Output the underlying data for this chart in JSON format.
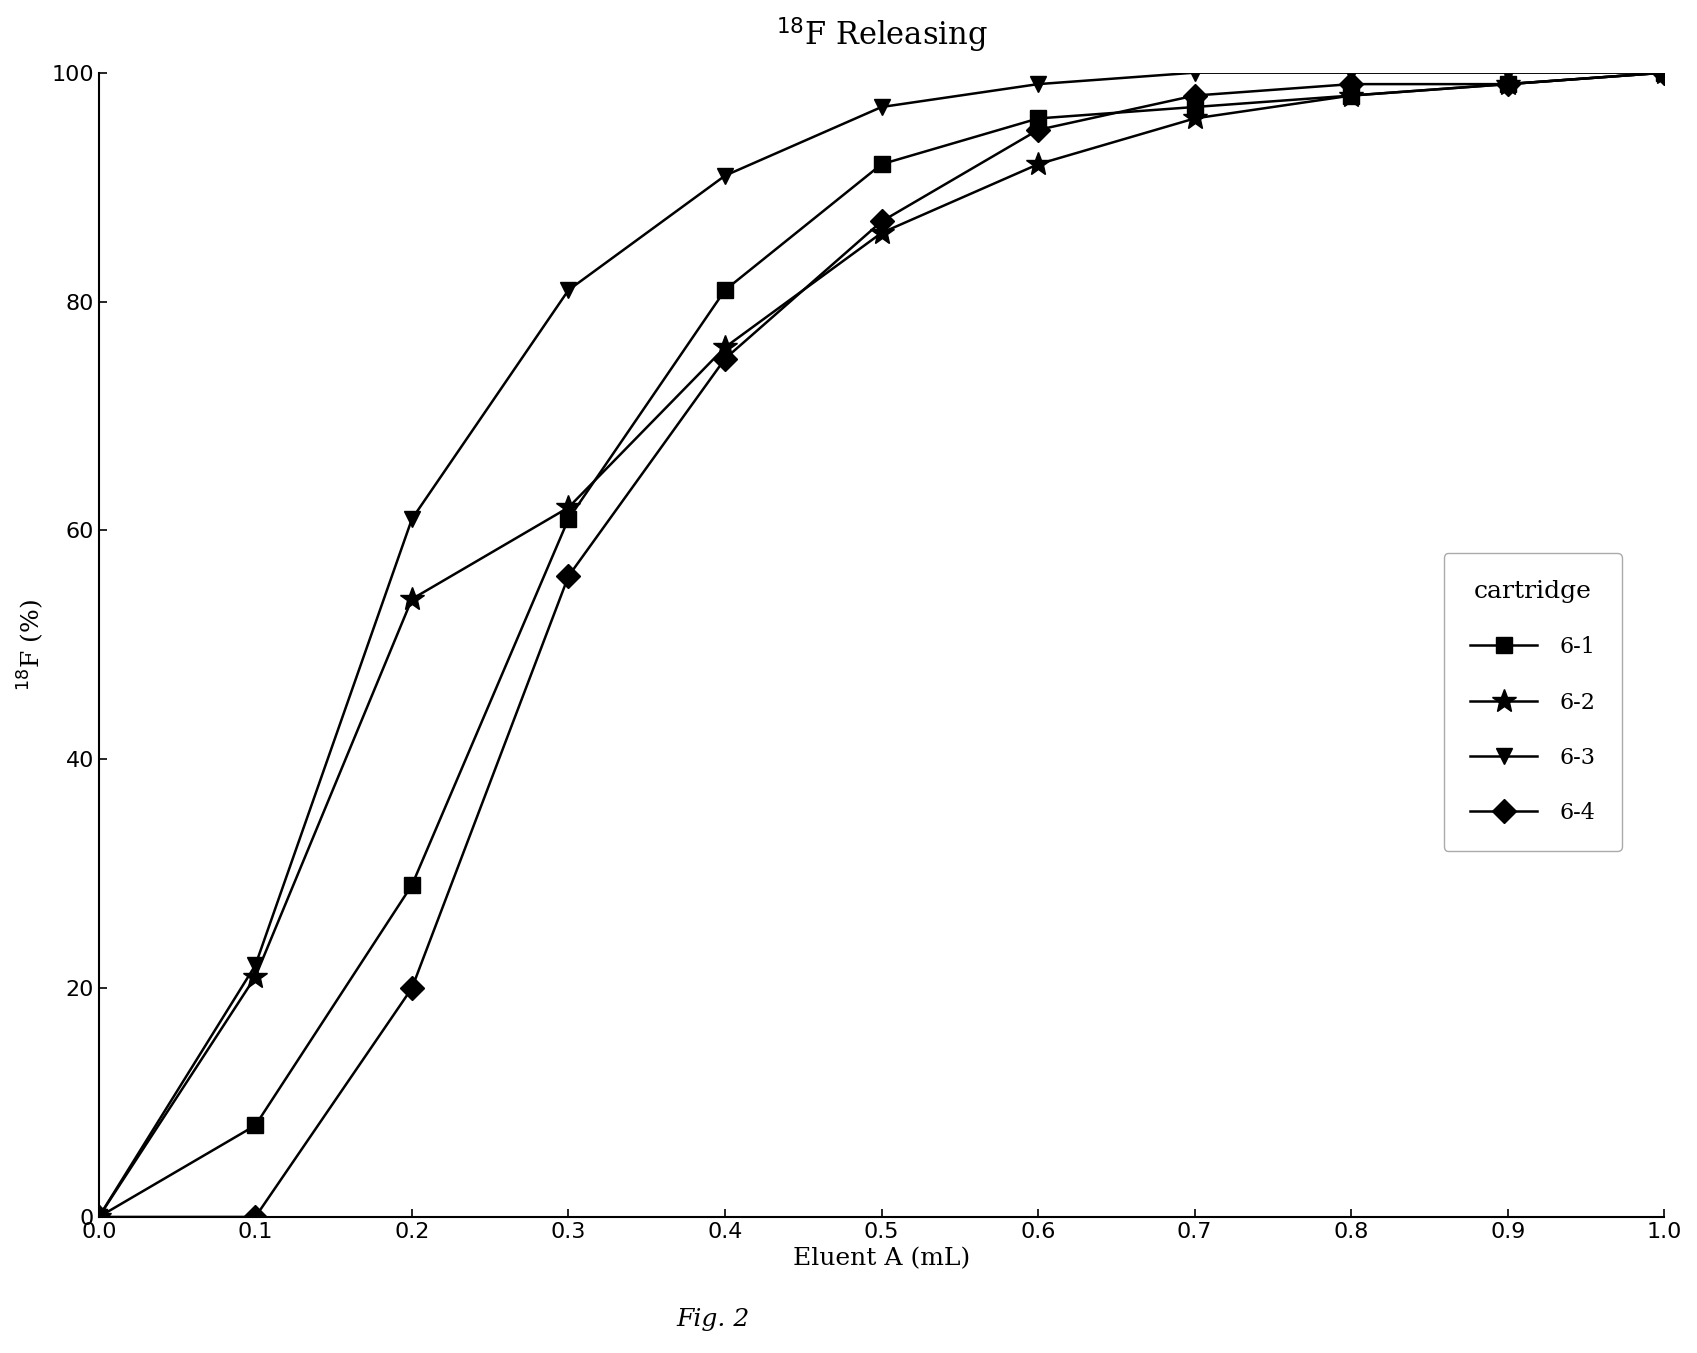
{
  "title": "$^{18}$F Releasing",
  "xlabel": "Eluent A (mL)",
  "ylabel": "$^{18}$F (%)",
  "caption": "Fig. 2",
  "xlim": [
    0.0,
    1.0
  ],
  "ylim": [
    0,
    100
  ],
  "xticks": [
    0.0,
    0.1,
    0.2,
    0.3,
    0.4,
    0.5,
    0.6,
    0.7,
    0.8,
    0.9,
    1.0
  ],
  "yticks": [
    0,
    20,
    40,
    60,
    80,
    100
  ],
  "legend_title": "cartridge",
  "series": [
    {
      "label": "6-1",
      "x": [
        0.0,
        0.1,
        0.2,
        0.3,
        0.4,
        0.5,
        0.6,
        0.7,
        0.8,
        0.9,
        1.0
      ],
      "y": [
        0,
        8,
        29,
        61,
        81,
        92,
        96,
        97,
        98,
        99,
        100
      ],
      "marker": "s",
      "markersize": 12
    },
    {
      "label": "6-2",
      "x": [
        0.0,
        0.1,
        0.2,
        0.3,
        0.4,
        0.5,
        0.6,
        0.7,
        0.8,
        0.9,
        1.0
      ],
      "y": [
        0,
        21,
        54,
        62,
        76,
        86,
        92,
        96,
        98,
        99,
        100
      ],
      "marker": "*",
      "markersize": 18
    },
    {
      "label": "6-3",
      "x": [
        0.0,
        0.1,
        0.2,
        0.3,
        0.4,
        0.5,
        0.6,
        0.7,
        0.8,
        0.9,
        1.0
      ],
      "y": [
        0,
        22,
        61,
        81,
        91,
        97,
        99,
        100,
        100,
        100,
        100
      ],
      "marker": "v",
      "markersize": 12
    },
    {
      "label": "6-4",
      "x": [
        0.0,
        0.1,
        0.2,
        0.3,
        0.4,
        0.5,
        0.6,
        0.7,
        0.8,
        0.9,
        1.0
      ],
      "y": [
        0,
        0,
        20,
        56,
        75,
        87,
        95,
        98,
        99,
        99,
        100
      ],
      "marker": "D",
      "markersize": 12
    }
  ],
  "fig_width": 16.97,
  "fig_height": 13.53,
  "dpi": 100,
  "background_color": "#ffffff",
  "line_color": "#000000",
  "linewidth": 1.8,
  "title_fontsize": 22,
  "label_fontsize": 18,
  "tick_fontsize": 16,
  "legend_title_fontsize": 18,
  "legend_fontsize": 16,
  "caption_fontsize": 18
}
